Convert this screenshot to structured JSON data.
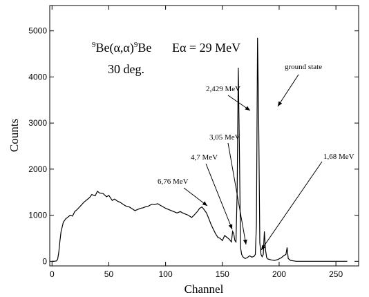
{
  "chart_data": {
    "type": "line",
    "x_label": "Channel",
    "y_label": "Counts",
    "reaction": [
      "9",
      "Be(α,α)",
      "9",
      "Be"
    ],
    "energy": "Eα = 29 MeV",
    "angle": "30 deg.",
    "annotations": [
      "ground state",
      "2,429 MeV",
      "3,05 MeV",
      "4,7 MeV",
      "6,76 MeV",
      "1,68 MeV"
    ],
    "color": "#000000",
    "x": [
      0,
      2,
      4,
      5,
      6,
      7,
      8,
      10,
      12,
      14,
      16,
      18,
      20,
      22,
      25,
      28,
      30,
      33,
      35,
      38,
      40,
      42,
      45,
      48,
      50,
      53,
      55,
      58,
      60,
      63,
      65,
      68,
      70,
      73,
      75,
      78,
      80,
      83,
      85,
      88,
      90,
      93,
      95,
      98,
      100,
      103,
      105,
      108,
      110,
      113,
      115,
      118,
      120,
      123,
      125,
      128,
      130,
      132,
      134,
      136,
      138,
      140,
      142,
      144,
      146,
      148,
      150,
      152,
      154,
      156,
      158,
      159,
      160,
      161,
      162,
      163,
      164,
      165,
      166,
      167,
      168,
      170,
      172,
      174,
      176,
      178,
      179,
      180,
      181,
      182,
      183,
      184,
      185,
      186,
      187,
      188,
      189,
      190,
      193,
      196,
      199,
      202,
      204,
      206,
      207,
      208,
      210,
      215,
      230,
      260
    ],
    "values": [
      0,
      0,
      10,
      50,
      200,
      450,
      650,
      850,
      920,
      960,
      1000,
      980,
      1080,
      1120,
      1200,
      1280,
      1320,
      1380,
      1450,
      1420,
      1520,
      1480,
      1470,
      1400,
      1430,
      1320,
      1350,
      1300,
      1280,
      1230,
      1200,
      1180,
      1150,
      1100,
      1120,
      1150,
      1160,
      1190,
      1200,
      1240,
      1230,
      1250,
      1220,
      1180,
      1150,
      1120,
      1100,
      1070,
      1050,
      1080,
      1050,
      1020,
      1000,
      950,
      1000,
      1080,
      1150,
      1180,
      1120,
      1050,
      930,
      800,
      700,
      600,
      520,
      500,
      450,
      560,
      520,
      480,
      420,
      650,
      600,
      450,
      420,
      1500,
      4200,
      2500,
      300,
      150,
      100,
      60,
      80,
      120,
      90,
      110,
      150,
      800,
      4850,
      3000,
      400,
      150,
      100,
      150,
      650,
      250,
      80,
      50,
      30,
      20,
      40,
      80,
      120,
      150,
      300,
      60,
      20,
      0,
      0,
      0
    ],
    "xlim": [
      -2,
      270
    ],
    "ylim": [
      -100,
      5550
    ],
    "xticks": [
      0,
      50,
      100,
      150,
      200,
      250
    ],
    "yticks": [
      0,
      1000,
      2000,
      3000,
      4000,
      5000
    ]
  }
}
